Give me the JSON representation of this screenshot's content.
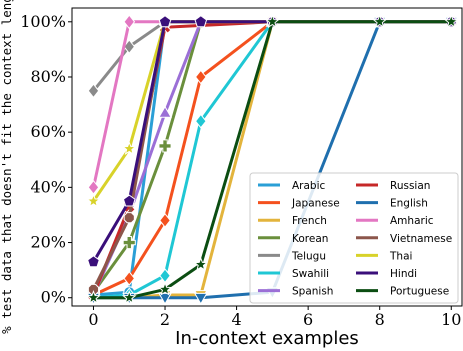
{
  "chart_data": {
    "type": "line",
    "xlabel": "In-context examples",
    "ylabel": "% test data that doesn't fit the context length",
    "xlim": [
      -0.6,
      10.3
    ],
    "ylim": [
      -3,
      105
    ],
    "x_ticks": [
      "0",
      "2",
      "4",
      "6",
      "8",
      "10"
    ],
    "x_tick_values": [
      0,
      2,
      4,
      6,
      8,
      10
    ],
    "y_ticks": [
      "0%",
      "20%",
      "40%",
      "60%",
      "80%",
      "100%"
    ],
    "y_tick_values": [
      0,
      20,
      40,
      60,
      80,
      100
    ],
    "grid": false,
    "legend_position": "lower-right",
    "series": [
      {
        "name": "Arabic",
        "color": "#2a9fd6",
        "marker": "circle",
        "x": [
          0,
          1,
          2,
          5,
          8,
          10
        ],
        "y": [
          1,
          2,
          100,
          100,
          100,
          100
        ]
      },
      {
        "name": "Japanese",
        "color": "#f4511e",
        "marker": "diamond",
        "x": [
          0,
          1,
          2,
          3,
          5,
          8,
          10
        ],
        "y": [
          1,
          7,
          28,
          80,
          100,
          100,
          100
        ]
      },
      {
        "name": "French",
        "color": "#e3b43c",
        "marker": "triangle-down",
        "x": [
          0,
          1,
          2,
          3,
          5,
          8,
          10
        ],
        "y": [
          0,
          0,
          1,
          1,
          100,
          100,
          100
        ]
      },
      {
        "name": "Korean",
        "color": "#6a8f3c",
        "marker": "plus",
        "x": [
          0,
          1,
          2,
          3,
          5,
          8,
          10
        ],
        "y": [
          2,
          20,
          55,
          100,
          100,
          100,
          100
        ]
      },
      {
        "name": "Telugu",
        "color": "#8a8a8a",
        "marker": "diamond",
        "x": [
          0,
          1,
          2,
          5,
          8,
          10
        ],
        "y": [
          75,
          91,
          100,
          100,
          100,
          100
        ]
      },
      {
        "name": "Swahili",
        "color": "#1fc7d4",
        "marker": "diamond",
        "x": [
          0,
          1,
          2,
          3,
          5,
          8,
          10
        ],
        "y": [
          0,
          1,
          8,
          64,
          100,
          100,
          100
        ]
      },
      {
        "name": "Spanish",
        "color": "#9b6fd6",
        "marker": "triangle-up",
        "x": [
          0,
          1,
          2,
          3,
          5,
          8,
          10
        ],
        "y": [
          1,
          30,
          67,
          100,
          100,
          100,
          100
        ]
      },
      {
        "name": "Russian",
        "color": "#c62828",
        "marker": "cross",
        "x": [
          0,
          1,
          2,
          5,
          8,
          10
        ],
        "y": [
          1,
          33,
          98,
          100,
          100,
          100
        ]
      },
      {
        "name": "English",
        "color": "#1f6fae",
        "marker": "triangle-down",
        "x": [
          0,
          1,
          2,
          3,
          5,
          8,
          10
        ],
        "y": [
          0,
          0,
          0,
          0,
          2,
          100,
          100
        ]
      },
      {
        "name": "Amharic",
        "color": "#e377c2",
        "marker": "diamond",
        "x": [
          0,
          1,
          2,
          5,
          8,
          10
        ],
        "y": [
          40,
          100,
          100,
          100,
          100,
          100
        ]
      },
      {
        "name": "Vietnamese",
        "color": "#8c564b",
        "marker": "octagon",
        "x": [
          0,
          1,
          2,
          5,
          8,
          10
        ],
        "y": [
          3,
          29,
          100,
          100,
          100,
          100
        ]
      },
      {
        "name": "Thai",
        "color": "#d8d22a",
        "marker": "star",
        "x": [
          0,
          1,
          2,
          5,
          8,
          10
        ],
        "y": [
          35,
          54,
          100,
          100,
          100,
          100
        ]
      },
      {
        "name": "Hindi",
        "color": "#3a0f7a",
        "marker": "pentagon",
        "x": [
          0,
          1,
          2,
          3,
          5,
          8,
          10
        ],
        "y": [
          13,
          35,
          100,
          100,
          100,
          100,
          100
        ]
      },
      {
        "name": "Portuguese",
        "color": "#0b4d12",
        "marker": "star",
        "x": [
          0,
          1,
          2,
          3,
          5,
          8,
          10
        ],
        "y": [
          0,
          0,
          3,
          12,
          100,
          100,
          100
        ]
      }
    ]
  }
}
